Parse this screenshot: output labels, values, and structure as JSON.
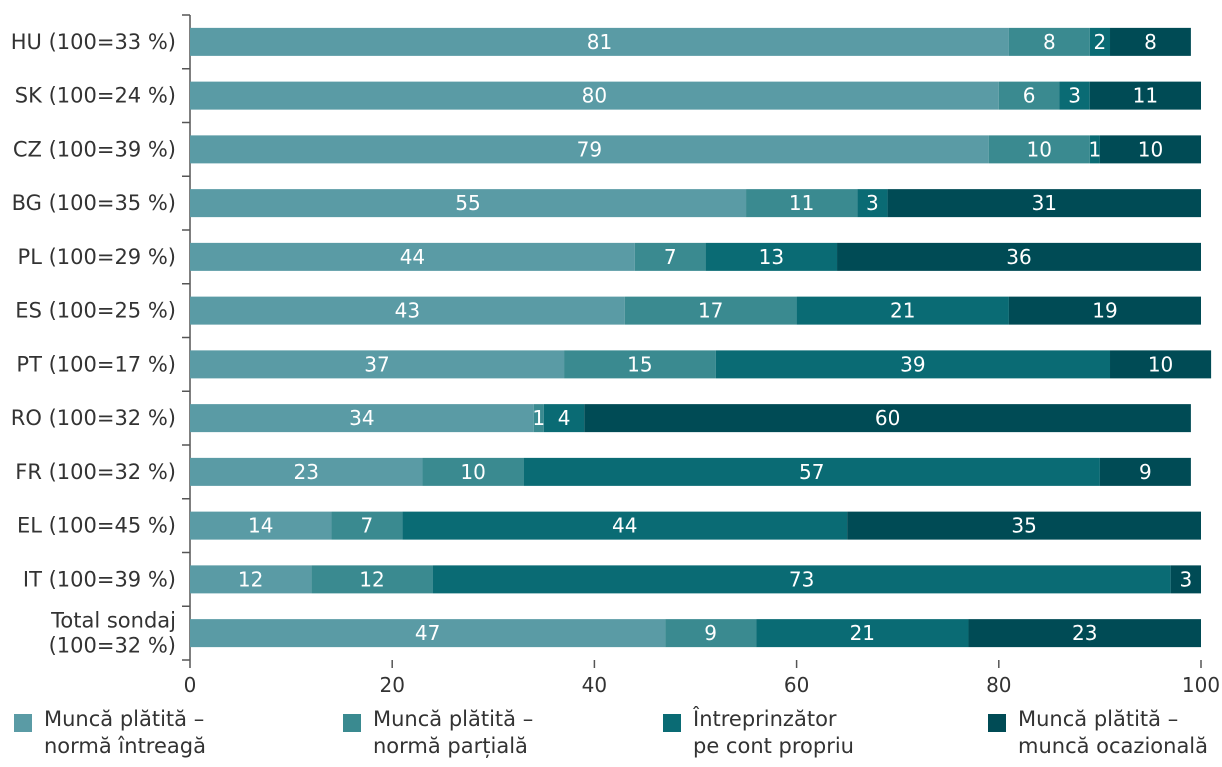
{
  "chart_data": {
    "type": "bar",
    "orientation": "horizontal",
    "stacked": true,
    "categories": [
      "HU (100=33 %)",
      "SK (100=24 %)",
      "CZ (100=39 %)",
      "BG (100=35 %)",
      "PL (100=29 %)",
      "ES (100=25 %)",
      "PT (100=17 %)",
      "RO (100=32 %)",
      "FR (100=32 %)",
      "EL (100=45 %)",
      "IT (100=39 %)",
      "Total sondaj\n(100=32 %)"
    ],
    "series": [
      {
        "name": "Muncă plătită –\nnormă întreagă",
        "color": "#5a9ba5",
        "values": [
          81,
          80,
          79,
          55,
          44,
          43,
          37,
          34,
          23,
          14,
          12,
          47
        ]
      },
      {
        "name": "Muncă plătită –\nnormă parțială",
        "color": "#3a8a90",
        "values": [
          8,
          6,
          10,
          11,
          7,
          17,
          15,
          1,
          10,
          7,
          12,
          9
        ]
      },
      {
        "name": "Întreprinzător\npe cont propriu",
        "color": "#0a6b74",
        "values": [
          2,
          3,
          1,
          3,
          13,
          21,
          39,
          4,
          57,
          44,
          73,
          21
        ]
      },
      {
        "name": "Muncă plătită –\nmuncă ocazională",
        "color": "#004b55",
        "values": [
          8,
          11,
          10,
          31,
          36,
          19,
          10,
          60,
          9,
          35,
          3,
          23
        ]
      }
    ],
    "xlim": [
      0,
      100
    ],
    "xticks": [
      "0",
      "20",
      "40",
      "60",
      "80",
      "100"
    ],
    "grid": false,
    "legend_position": "bottom",
    "axis_color": "#555555",
    "label_color": "#ffffff",
    "text_color": "#333333"
  }
}
